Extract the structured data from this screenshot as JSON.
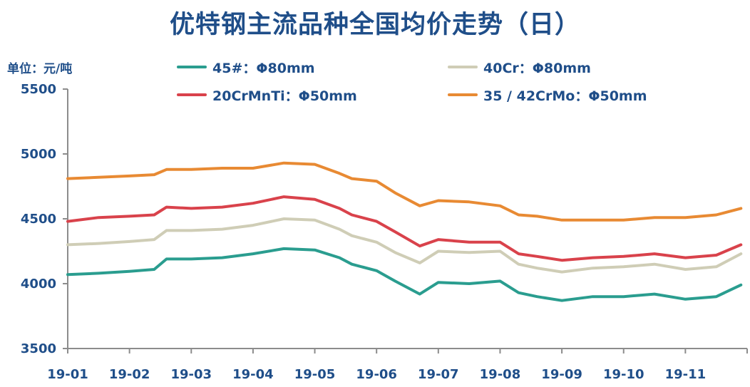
{
  "title": "优特钢主流品种全国均价走势（日）",
  "unit_label": "单位：元/吨",
  "colors": {
    "text": "#1f4e89",
    "axis": "#8c8c8c",
    "s45": "#2a9d8f",
    "s40cr": "#cfcdb6",
    "s20crmnti": "#d9424b",
    "s42crmo": "#e88a33"
  },
  "chart_data": {
    "type": "line",
    "title": "优特钢主流品种全国均价走势（日）",
    "ylabel": "单位：元/吨",
    "xlabel": "",
    "ylim": [
      3500,
      5500
    ],
    "yticks": [
      3500,
      4000,
      4500,
      5000,
      5500
    ],
    "xticks": [
      "19-01",
      "19-02",
      "19-03",
      "19-04",
      "19-05",
      "19-06",
      "19-07",
      "19-08",
      "19-09",
      "19-10",
      "19-11"
    ],
    "xlim": [
      "19-01",
      "19-12"
    ],
    "grid": false,
    "legend_position": "top",
    "x": [
      "19-01",
      "19-01.5",
      "19-02",
      "19-02.4",
      "19-02.6",
      "19-03",
      "19-03.5",
      "19-04",
      "19-04.5",
      "19-05",
      "19-05.4",
      "19-05.6",
      "19-06",
      "19-06.3",
      "19-06.7",
      "19-07",
      "19-07.5",
      "19-08",
      "19-08.3",
      "19-08.6",
      "19-09",
      "19-09.5",
      "19-10",
      "19-10.5",
      "19-11",
      "19-11.5",
      "19-11.9"
    ],
    "series": [
      {
        "name": "45#：Φ80mm",
        "color": "#2a9d8f",
        "values": [
          4070,
          4080,
          4095,
          4110,
          4190,
          4190,
          4200,
          4230,
          4270,
          4260,
          4200,
          4150,
          4100,
          4020,
          3920,
          4010,
          4000,
          4020,
          3930,
          3900,
          3870,
          3900,
          3900,
          3920,
          3880,
          3900,
          3990
        ]
      },
      {
        "name": "40Cr：Φ80mm",
        "color": "#cfcdb6",
        "values": [
          4300,
          4310,
          4325,
          4340,
          4410,
          4410,
          4420,
          4450,
          4500,
          4490,
          4420,
          4370,
          4320,
          4240,
          4160,
          4250,
          4240,
          4250,
          4150,
          4120,
          4090,
          4120,
          4130,
          4150,
          4110,
          4130,
          4230
        ]
      },
      {
        "name": "20CrMnTi：Φ50mm",
        "color": "#d9424b",
        "values": [
          4480,
          4510,
          4520,
          4530,
          4590,
          4580,
          4590,
          4620,
          4670,
          4650,
          4580,
          4530,
          4480,
          4400,
          4290,
          4340,
          4320,
          4320,
          4230,
          4210,
          4180,
          4200,
          4210,
          4230,
          4200,
          4220,
          4300
        ]
      },
      {
        "name": "35 / 42CrMo：Φ50mm",
        "color": "#e88a33",
        "values": [
          4810,
          4820,
          4830,
          4840,
          4880,
          4880,
          4890,
          4890,
          4930,
          4920,
          4850,
          4810,
          4790,
          4700,
          4600,
          4640,
          4630,
          4600,
          4530,
          4520,
          4490,
          4490,
          4490,
          4510,
          4510,
          4530,
          4580
        ]
      }
    ]
  }
}
